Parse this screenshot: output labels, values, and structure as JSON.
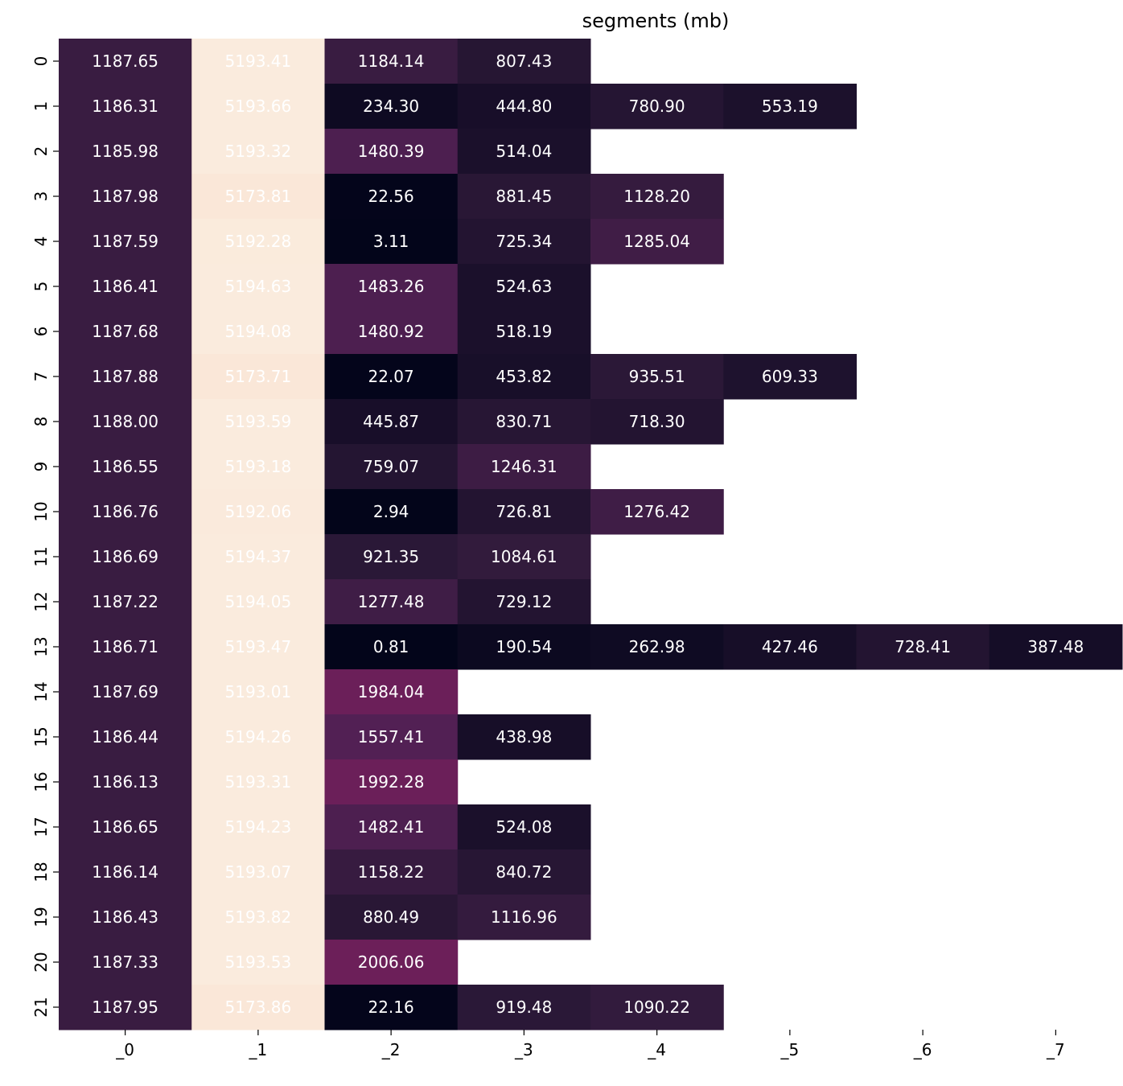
{
  "chart_data": {
    "type": "heatmap",
    "title": "segments (mb)",
    "xlabel": "",
    "ylabel": "",
    "x_categories": [
      "_0",
      "_1",
      "_2",
      "_3",
      "_4",
      "_5",
      "_6",
      "_7"
    ],
    "y_categories": [
      "0",
      "1",
      "2",
      "3",
      "4",
      "5",
      "6",
      "7",
      "8",
      "9",
      "10",
      "11",
      "12",
      "13",
      "14",
      "15",
      "16",
      "17",
      "18",
      "19",
      "20",
      "21"
    ],
    "values": [
      [
        1187.65,
        5193.41,
        1184.14,
        807.43,
        null,
        null,
        null,
        null
      ],
      [
        1186.31,
        5193.66,
        234.3,
        444.8,
        780.9,
        553.19,
        null,
        null
      ],
      [
        1185.98,
        5193.32,
        1480.39,
        514.04,
        null,
        null,
        null,
        null
      ],
      [
        1187.98,
        5173.81,
        22.56,
        881.45,
        1128.2,
        null,
        null,
        null
      ],
      [
        1187.59,
        5192.28,
        3.11,
        725.34,
        1285.04,
        null,
        null,
        null
      ],
      [
        1186.41,
        5194.63,
        1483.26,
        524.63,
        null,
        null,
        null,
        null
      ],
      [
        1187.68,
        5194.08,
        1480.92,
        518.19,
        null,
        null,
        null,
        null
      ],
      [
        1187.88,
        5173.71,
        22.07,
        453.82,
        935.51,
        609.33,
        null,
        null
      ],
      [
        1188.0,
        5193.59,
        445.87,
        830.71,
        718.3,
        null,
        null,
        null
      ],
      [
        1186.55,
        5193.18,
        759.07,
        1246.31,
        null,
        null,
        null,
        null
      ],
      [
        1186.76,
        5192.06,
        2.94,
        726.81,
        1276.42,
        null,
        null,
        null
      ],
      [
        1186.69,
        5194.37,
        921.35,
        1084.61,
        null,
        null,
        null,
        null
      ],
      [
        1187.22,
        5194.05,
        1277.48,
        729.12,
        null,
        null,
        null,
        null
      ],
      [
        1186.71,
        5193.47,
        0.81,
        190.54,
        262.98,
        427.46,
        728.41,
        387.48
      ],
      [
        1187.69,
        5193.01,
        1984.04,
        null,
        null,
        null,
        null,
        null
      ],
      [
        1186.44,
        5194.26,
        1557.41,
        438.98,
        null,
        null,
        null,
        null
      ],
      [
        1186.13,
        5193.31,
        1992.28,
        null,
        null,
        null,
        null,
        null
      ],
      [
        1186.65,
        5194.23,
        1482.41,
        524.08,
        null,
        null,
        null,
        null
      ],
      [
        1186.14,
        5193.07,
        1158.22,
        840.72,
        null,
        null,
        null,
        null
      ],
      [
        1186.43,
        5193.82,
        880.49,
        1116.96,
        null,
        null,
        null,
        null
      ],
      [
        1187.33,
        5193.53,
        2006.06,
        null,
        null,
        null,
        null,
        null
      ],
      [
        1187.95,
        5173.86,
        22.16,
        919.48,
        1090.22,
        null,
        null,
        null
      ]
    ],
    "value_format": "2 decimals",
    "colormap": "rocket",
    "colorbar": false,
    "grid": false,
    "vmin": 0.81,
    "vmax": 5194.63
  }
}
